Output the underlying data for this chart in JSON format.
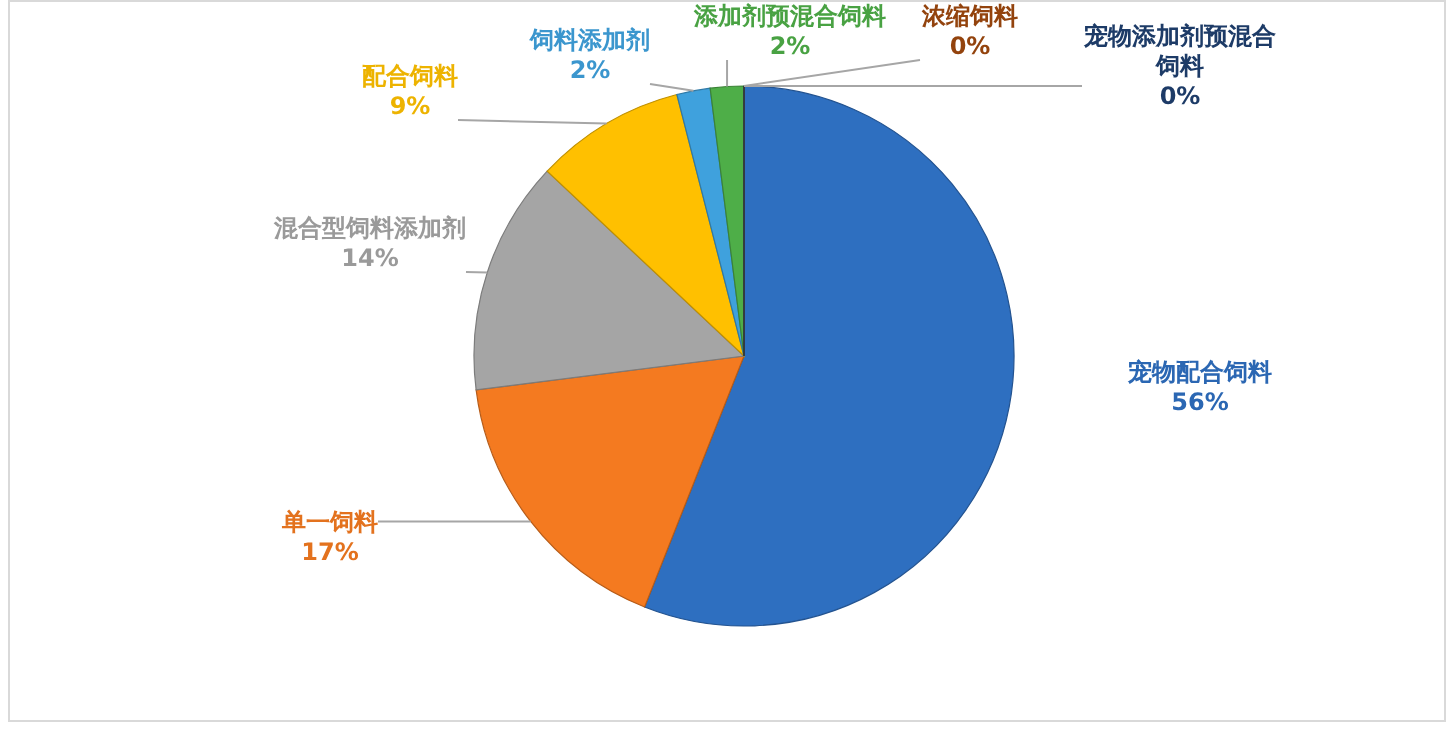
{
  "chart_data": {
    "type": "pie",
    "categories": [
      "宠物配合饲料",
      "单一饲料",
      "混合型饲料添加剂",
      "配合饲料",
      "饲料添加剂",
      "添加剂预混合饲料",
      "浓缩饲料",
      "宠物添加剂预混合饲料"
    ],
    "values": [
      56,
      17,
      14,
      9,
      2,
      2,
      0,
      0
    ],
    "value_labels": [
      "56%",
      "17%",
      "14%",
      "9%",
      "2%",
      "2%",
      "0%",
      "0%"
    ],
    "colors": [
      "#2e6fc0",
      "#f47a20",
      "#a5a5a5",
      "#ffc000",
      "#3fa1dd",
      "#4eae48",
      "#9e480e",
      "#1f3f6f"
    ]
  }
}
